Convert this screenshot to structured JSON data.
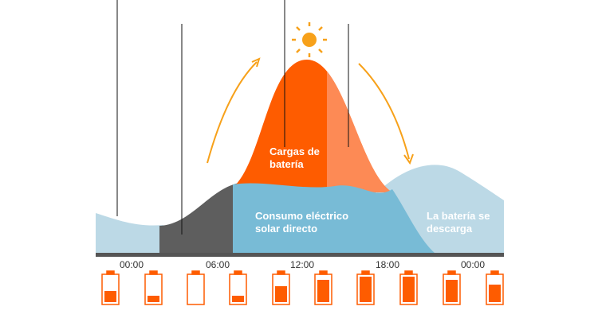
{
  "time_labels": [
    "00:00",
    "06:00",
    "12:00",
    "18:00",
    "00:00"
  ],
  "regions": {
    "battery_charge": [
      "Cargas de",
      "batería"
    ],
    "direct_consumption": [
      "Consumo eléctrico",
      "solar directo"
    ],
    "battery_discharge": [
      "La batería se",
      "descarga"
    ]
  }
}
